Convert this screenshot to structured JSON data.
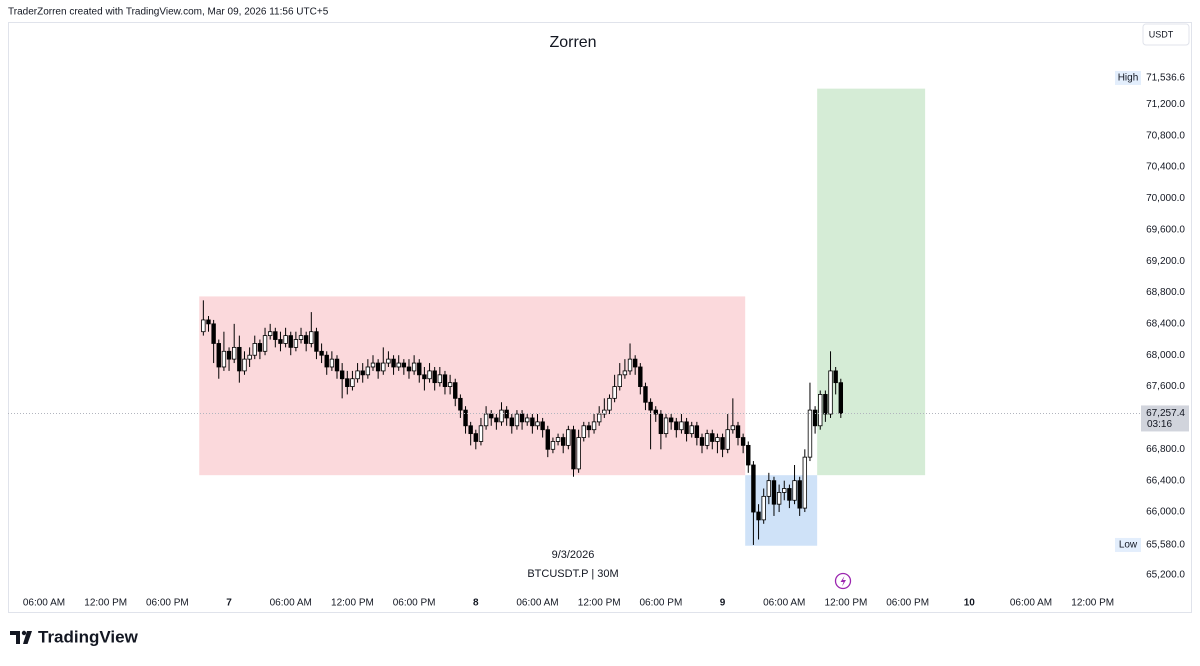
{
  "header": "TraderZorren created with TradingView.com, Mar 09, 2026 11:56 UTC+5",
  "chart_data": {
    "type": "candlestick",
    "title": "Zorren",
    "currency": "USDT",
    "date_label": "9/3/2026",
    "symbol_label": "BTCUSDT.P | 30M",
    "brand": "TradingView",
    "xlim": [
      -3.5,
      106.6
    ],
    "xticks": [
      {
        "value": 0,
        "label": "06:00 AM"
      },
      {
        "value": 6,
        "label": "12:00 PM"
      },
      {
        "value": 12,
        "label": "06:00 PM"
      },
      {
        "value": 18,
        "label": "7"
      },
      {
        "value": 24,
        "label": "06:00 AM"
      },
      {
        "value": 30,
        "label": "12:00 PM"
      },
      {
        "value": 36,
        "label": "06:00 PM"
      },
      {
        "value": 42,
        "label": "8"
      },
      {
        "value": 48,
        "label": "06:00 AM"
      },
      {
        "value": 54,
        "label": "12:00 PM"
      },
      {
        "value": 60,
        "label": "06:00 PM"
      },
      {
        "value": 66,
        "label": "9"
      },
      {
        "value": 72,
        "label": "06:00 AM"
      },
      {
        "value": 78,
        "label": "12:00 PM"
      },
      {
        "value": 84,
        "label": "06:00 PM"
      },
      {
        "value": 90,
        "label": "10"
      },
      {
        "value": 96,
        "label": "06:00 AM"
      },
      {
        "value": 102,
        "label": "12:00 PM"
      }
    ],
    "ylim": [
      64980,
      72250
    ],
    "yticks": [
      {
        "value": 65200,
        "label": "65,200.0"
      },
      {
        "value": 65600,
        "label": "65,600.0"
      },
      {
        "value": 66000,
        "label": "66,000.0"
      },
      {
        "value": 66400,
        "label": "66,400.0"
      },
      {
        "value": 66800,
        "label": "66,800.0"
      },
      {
        "value": 67200,
        "label": "67,200.0"
      },
      {
        "value": 67600,
        "label": "67,600.0"
      },
      {
        "value": 68000,
        "label": "68,000.0"
      },
      {
        "value": 68400,
        "label": "68,400.0"
      },
      {
        "value": 68800,
        "label": "68,800.0"
      },
      {
        "value": 69200,
        "label": "69,200.0"
      },
      {
        "value": 69600,
        "label": "69,600.0"
      },
      {
        "value": 70000,
        "label": "70,000.0"
      },
      {
        "value": 70400,
        "label": "70,400.0"
      },
      {
        "value": 70800,
        "label": "70,800.0"
      },
      {
        "value": 71200,
        "label": "71,200.0"
      }
    ],
    "up_color": "#ffffff",
    "down_color": "#000000",
    "zones": [
      {
        "color": "#fbd9dc",
        "x": [
          15.1,
          68.2
        ],
        "y": [
          66470,
          68750
        ]
      },
      {
        "color": "#cfe2f8",
        "x": [
          68.2,
          75.2
        ],
        "y": [
          65570,
          66470
        ]
      },
      {
        "color": "#d5ecd6",
        "x": [
          75.2,
          85.7
        ],
        "y": [
          66470,
          71400
        ]
      }
    ],
    "high": {
      "text": "High",
      "value": 71536.6,
      "label": "71,536.6"
    },
    "low": {
      "text": "Low",
      "value": 65580,
      "label": "65,580.0"
    },
    "last_price": {
      "value": 67257.4,
      "label": "67,257.4",
      "countdown": "03:16"
    },
    "x": [
      15.5,
      16,
      16.5,
      17,
      17.5,
      18,
      18.5,
      19,
      19.5,
      20,
      20.5,
      21,
      21.5,
      22,
      22.5,
      23,
      23.5,
      24,
      24.5,
      25,
      25.5,
      26,
      26.5,
      27,
      27.5,
      28,
      28.5,
      29,
      29.5,
      30,
      30.5,
      31,
      31.5,
      32,
      32.5,
      33,
      33.5,
      34,
      34.5,
      35,
      35.5,
      36,
      36.5,
      37,
      37.5,
      38,
      38.5,
      39,
      39.5,
      40,
      40.5,
      41,
      41.5,
      42,
      42.5,
      43,
      43.5,
      44,
      44.5,
      45,
      45.5,
      46,
      46.5,
      47,
      47.5,
      48,
      48.5,
      49,
      49.5,
      50,
      50.5,
      51,
      51.5,
      52,
      52.5,
      53,
      53.5,
      54,
      54.5,
      55,
      55.5,
      56,
      56.5,
      57,
      57.5,
      58,
      58.5,
      59,
      59.5,
      60,
      60.5,
      61,
      61.5,
      62,
      62.5,
      63,
      63.5,
      64,
      64.5,
      65,
      65.5,
      66,
      66.5,
      67,
      67.5,
      68,
      68.5,
      69,
      69.5,
      70,
      70.5,
      71,
      71.5,
      72,
      72.5,
      73,
      73.5,
      74,
      74.5,
      75,
      75.5,
      76,
      76.5,
      77,
      77.5
    ],
    "open": [
      68300,
      68450,
      68400,
      68150,
      67850,
      68050,
      67950,
      68100,
      67800,
      67950,
      68000,
      68150,
      68050,
      68250,
      68300,
      68200,
      68150,
      68250,
      68100,
      68200,
      68250,
      68150,
      68300,
      68050,
      68000,
      67850,
      67950,
      67800,
      67700,
      67600,
      67700,
      67800,
      67750,
      67850,
      67900,
      67800,
      67900,
      67950,
      67850,
      67900,
      67850,
      67800,
      67900,
      67750,
      67700,
      67800,
      67650,
      67750,
      67600,
      67650,
      67450,
      67300,
      67100,
      67000,
      66900,
      67100,
      67250,
      67200,
      67150,
      67300,
      67200,
      67100,
      67250,
      67150,
      67200,
      67100,
      67150,
      67050,
      66800,
      66900,
      66950,
      66850,
      67050,
      66550,
      66950,
      67100,
      67050,
      67150,
      67250,
      67300,
      67450,
      67600,
      67750,
      67800,
      67950,
      67850,
      67600,
      67400,
      67300,
      67250,
      67000,
      67200,
      67150,
      67050,
      67150,
      67000,
      67100,
      66950,
      66850,
      67000,
      66900,
      66950,
      66800,
      67050,
      67100,
      66950,
      66850,
      66600,
      66000,
      65900,
      66200,
      66400,
      66100,
      66250,
      66300,
      66150,
      66400,
      66050,
      66700,
      67300,
      67100,
      67500,
      67250,
      67800,
      67650
    ],
    "high_values": [
      68700,
      68500,
      68450,
      68200,
      68300,
      68100,
      68400,
      68250,
      68050,
      68100,
      68250,
      68200,
      68350,
      68400,
      68350,
      68300,
      68350,
      68300,
      68300,
      68350,
      68300,
      68550,
      68350,
      68150,
      68050,
      68050,
      68000,
      67900,
      67800,
      67800,
      67900,
      67900,
      67950,
      68000,
      67950,
      68100,
      68050,
      68000,
      68000,
      67950,
      67950,
      68000,
      67950,
      67850,
      67900,
      67850,
      67850,
      67800,
      67750,
      67700,
      67500,
      67350,
      67150,
      67050,
      67200,
      67350,
      67300,
      67250,
      67400,
      67350,
      67250,
      67300,
      67300,
      67250,
      67250,
      67250,
      67200,
      67100,
      66950,
      67000,
      67000,
      67100,
      67100,
      67050,
      67150,
      67150,
      67250,
      67350,
      67450,
      67500,
      67750,
      67900,
      67950,
      68150,
      68000,
      67900,
      67650,
      67450,
      67350,
      67300,
      67250,
      67250,
      67200,
      67250,
      67200,
      67150,
      67150,
      67000,
      67050,
      67050,
      67000,
      67000,
      67250,
      67450,
      67150,
      67000,
      66900,
      66650,
      66100,
      66300,
      66500,
      66450,
      66350,
      66400,
      66350,
      66600,
      66450,
      66800,
      67650,
      67350,
      67550,
      67550,
      68050,
      67850,
      67700
    ],
    "low_values": [
      68250,
      68300,
      67900,
      67700,
      67800,
      67800,
      67900,
      67650,
      67750,
      67850,
      67950,
      67950,
      68000,
      68200,
      68100,
      68050,
      68100,
      68000,
      68050,
      68150,
      68050,
      68100,
      67950,
      67900,
      67750,
      67800,
      67700,
      67450,
      67500,
      67550,
      67650,
      67650,
      67700,
      67800,
      67700,
      67750,
      67850,
      67750,
      67800,
      67750,
      67700,
      67750,
      67650,
      67550,
      67650,
      67550,
      67600,
      67500,
      67500,
      67350,
      67200,
      67000,
      66850,
      66800,
      66850,
      67050,
      67100,
      67050,
      67100,
      67100,
      67000,
      67050,
      67050,
      67100,
      67000,
      67050,
      66950,
      66700,
      66750,
      66850,
      66750,
      66800,
      66450,
      66500,
      66900,
      66950,
      67000,
      67100,
      67200,
      67250,
      67400,
      67550,
      67700,
      67750,
      67750,
      67500,
      67300,
      66800,
      67150,
      66800,
      66950,
      67050,
      66950,
      67000,
      66900,
      66950,
      66850,
      66750,
      66800,
      66800,
      66750,
      66700,
      66750,
      67000,
      66850,
      66750,
      66500,
      65580,
      65650,
      65850,
      66100,
      65950,
      66000,
      66150,
      66050,
      66100,
      65950,
      66000,
      66650,
      67000,
      67050,
      67150,
      67200,
      67500,
      67200
    ],
    "close": [
      68450,
      68400,
      68150,
      67850,
      68050,
      67950,
      68100,
      67800,
      67950,
      68000,
      68150,
      68050,
      68250,
      68300,
      68200,
      68150,
      68250,
      68100,
      68200,
      68250,
      68150,
      68300,
      68050,
      68000,
      67850,
      67950,
      67800,
      67700,
      67600,
      67700,
      67800,
      67750,
      67850,
      67900,
      67800,
      67900,
      67950,
      67850,
      67900,
      67850,
      67800,
      67900,
      67750,
      67700,
      67800,
      67650,
      67750,
      67600,
      67650,
      67450,
      67300,
      67100,
      67000,
      66900,
      67100,
      67250,
      67200,
      67150,
      67300,
      67200,
      67100,
      67250,
      67150,
      67200,
      67100,
      67150,
      67050,
      66800,
      66900,
      66950,
      66850,
      67050,
      66550,
      66950,
      67100,
      67050,
      67150,
      67250,
      67300,
      67450,
      67600,
      67750,
      67800,
      67950,
      67850,
      67600,
      67400,
      67300,
      67250,
      67000,
      67200,
      67150,
      67050,
      67150,
      67000,
      67100,
      66950,
      66850,
      67000,
      66900,
      66950,
      66800,
      67050,
      67100,
      66950,
      66850,
      66600,
      66000,
      65900,
      66200,
      66400,
      66100,
      66250,
      66300,
      66150,
      66400,
      66050,
      66700,
      67300,
      67100,
      67500,
      67250,
      67800,
      67650,
      67257.4
    ]
  }
}
